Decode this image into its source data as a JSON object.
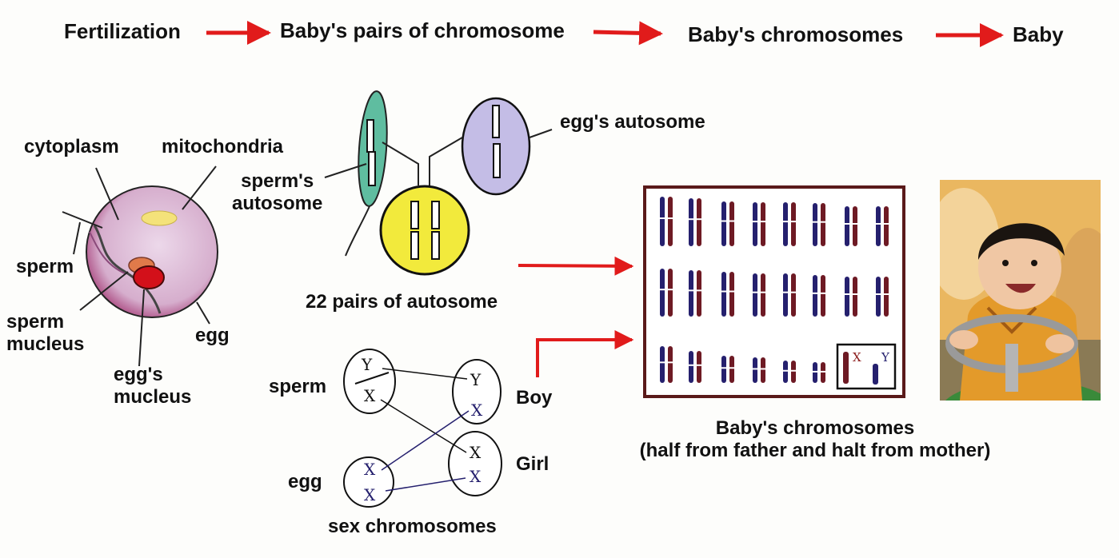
{
  "flow": {
    "step1": "Fertilization",
    "step2": "Baby's pairs of chromosome",
    "step3": "Baby's chromosomes",
    "step4": "Baby"
  },
  "cell": {
    "cytoplasm": "cytoplasm",
    "mitochondria": "mitochondria",
    "sperm": "sperm",
    "sperm_nucleus_line1": "sperm",
    "sperm_nucleus_line2": "mucleus",
    "egg": "egg",
    "egg_nucleus_line1": "egg's",
    "egg_nucleus_line2": "mucleus"
  },
  "autosome": {
    "egg_autosome": "egg's autosome",
    "sperm_autosome_line1": "sperm's",
    "sperm_autosome_line2": "autosome",
    "pairs": "22 pairs of autosome"
  },
  "sex": {
    "sperm": "sperm",
    "egg": "egg",
    "boy": "Boy",
    "girl": "Girl",
    "title": "sex chromosomes",
    "sperm_top": "Y",
    "sperm_bottom": "X",
    "egg_top": "X",
    "egg_bottom": "X",
    "boy_top": "Y",
    "boy_bottom": "X",
    "girl_top": "X",
    "girl_bottom": "X"
  },
  "karyotype": {
    "caption_line1": "Baby's chromosomes",
    "caption_line2": "(half from father and halt from mother)",
    "sex_x": "X",
    "sex_y": "Y"
  },
  "colors": {
    "arrow": "#e11b1b",
    "chrom_blue": "#25206e",
    "chrom_red": "#6e1a24",
    "egg_cell": "#dcc3e2",
    "nucleus_yellow": "#f2ea3c",
    "sperm_teal": "#5fbda0",
    "egg_oval": "#c4bde6"
  }
}
